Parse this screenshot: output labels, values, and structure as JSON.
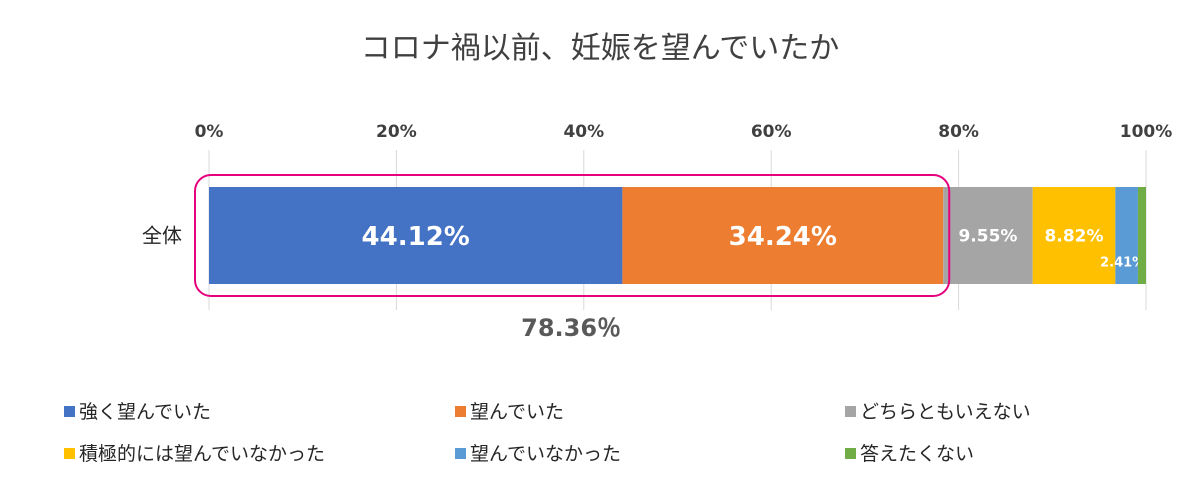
{
  "chart_data": {
    "type": "bar",
    "orientation": "horizontal",
    "stacked": true,
    "title": "コロナ禍以前、妊娠を望んでいたか",
    "categories": [
      "全体"
    ],
    "xlim": [
      0,
      100
    ],
    "x_ticks": [
      "0%",
      "20%",
      "40%",
      "60%",
      "80%",
      "100%"
    ],
    "grid": true,
    "legend_position": "bottom",
    "series": [
      {
        "name": "強く望んでいた",
        "values": [
          44.12
        ],
        "label": "44.12%",
        "color": "#4472C4"
      },
      {
        "name": "望んでいた",
        "values": [
          34.24
        ],
        "label": "34.24%",
        "color": "#ED7D31"
      },
      {
        "name": "どちらともいえない",
        "values": [
          9.55
        ],
        "label": "9.55%",
        "color": "#A5A5A5"
      },
      {
        "name": "積極的には望んでいなかった",
        "values": [
          8.82
        ],
        "label": "8.82%",
        "color": "#FFC000"
      },
      {
        "name": "望んでいなかった",
        "values": [
          2.41
        ],
        "label": "2.41%",
        "color": "#5B9BD5"
      },
      {
        "name": "答えたくない",
        "values": [
          0.86
        ],
        "label": "",
        "color": "#70AD47"
      }
    ],
    "annotation": {
      "text": "78.36％",
      "color": "#E6007E"
    }
  }
}
